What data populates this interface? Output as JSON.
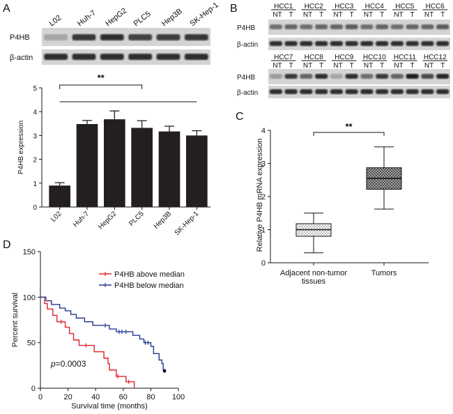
{
  "panels": {
    "A": "A",
    "B": "B",
    "C": "C",
    "D": "D"
  },
  "colors": {
    "bar": "#231f20",
    "blot_band": "#1c1c1c",
    "blot_bg": "#d4d4d4",
    "above_median": "#e0232c",
    "below_median": "#27378f"
  },
  "panel_a_blot": {
    "lanes": [
      "L02",
      "Huh-7",
      "HepG2",
      "PLC5",
      "Hep3B",
      "SK-Hep-1"
    ],
    "rows": [
      "P4HB",
      "β-actin"
    ],
    "p4hb_intensity": [
      0.25,
      0.85,
      0.9,
      0.8,
      0.82,
      0.85
    ]
  },
  "panel_b_blot": {
    "top_groups": [
      "HCC1",
      "HCC2",
      "HCC3",
      "HCC4",
      "HCC5",
      "HCC6"
    ],
    "bottom_groups": [
      "HCC7",
      "HCC8",
      "HCC9",
      "HCC10",
      "HCC11",
      "HCC12"
    ],
    "sub_labels": [
      "NT",
      "T"
    ],
    "rows": [
      "P4HB",
      "β-actin"
    ]
  },
  "chart_data": [
    {
      "id": "A-bar",
      "type": "bar",
      "title": "",
      "xlabel": "",
      "ylabel": "P4HB expression",
      "ylim": [
        0,
        5
      ],
      "yticks": [
        "0",
        "1",
        "2",
        "3",
        "4",
        "5"
      ],
      "categories": [
        "L02",
        "Huh-7",
        "HepG2",
        "PLC5",
        "Hep3B",
        "SK-Hep-1"
      ],
      "values": [
        0.9,
        3.48,
        3.68,
        3.32,
        3.17,
        3.0
      ],
      "errors": [
        0.12,
        0.15,
        0.35,
        0.3,
        0.22,
        0.2
      ],
      "significance": "**"
    },
    {
      "id": "C-box",
      "type": "box",
      "ylabel": "Relative P4HB mRNA expression",
      "ylim": [
        0,
        4
      ],
      "yticks": [
        "0",
        "1",
        "2",
        "3",
        "4"
      ],
      "categories": [
        "Adjacent non-tumor\ntissues",
        "Tumors"
      ],
      "boxes": [
        {
          "min": 0.3,
          "q1": 0.8,
          "median": 1.0,
          "q3": 1.18,
          "max": 1.5
        },
        {
          "min": 1.62,
          "q1": 2.22,
          "median": 2.55,
          "q3": 2.87,
          "max": 3.5
        }
      ],
      "significance": "**"
    },
    {
      "id": "D-km",
      "type": "line",
      "xlabel": "Survival time (months)",
      "ylabel": "Percent survival",
      "xlim": [
        0,
        100
      ],
      "ylim": [
        0,
        150
      ],
      "xticks": [
        "0",
        "20",
        "40",
        "60",
        "80",
        "100"
      ],
      "yticks": [
        "0",
        "50",
        "100",
        "150"
      ],
      "annotation_prefix": "p",
      "annotation_value": "=0.0003",
      "series": [
        {
          "name": "P4HB above median",
          "color_key": "above_median",
          "steps": [
            [
              0,
              100
            ],
            [
              3,
              93
            ],
            [
              5,
              87
            ],
            [
              9,
              80
            ],
            [
              12,
              73
            ],
            [
              16,
              73
            ],
            [
              18,
              67
            ],
            [
              21,
              60
            ],
            [
              24,
              53
            ],
            [
              28,
              47
            ],
            [
              32,
              47
            ],
            [
              35,
              47
            ],
            [
              39,
              40
            ],
            [
              42,
              40
            ],
            [
              46,
              33
            ],
            [
              49,
              27
            ],
            [
              50,
              20
            ],
            [
              53,
              20
            ],
            [
              55,
              13
            ],
            [
              58,
              13
            ],
            [
              62,
              7
            ],
            [
              66,
              7
            ],
            [
              68,
              0
            ]
          ],
          "censored": [
            [
              15,
              73
            ],
            [
              33,
              47
            ],
            [
              56,
              13
            ],
            [
              64,
              7
            ]
          ]
        },
        {
          "name": "P4HB below median",
          "color_key": "below_median",
          "steps": [
            [
              0,
              100
            ],
            [
              4,
              96
            ],
            [
              8,
              92
            ],
            [
              14,
              88
            ],
            [
              18,
              85
            ],
            [
              22,
              81
            ],
            [
              26,
              77
            ],
            [
              32,
              73
            ],
            [
              38,
              69
            ],
            [
              45,
              69
            ],
            [
              50,
              65
            ],
            [
              55,
              62
            ],
            [
              61,
              62
            ],
            [
              67,
              58
            ],
            [
              72,
              54
            ],
            [
              75,
              50
            ],
            [
              80,
              46
            ],
            [
              82,
              38
            ],
            [
              86,
              31
            ],
            [
              88,
              27
            ],
            [
              89,
              19
            ],
            [
              90,
              19
            ]
          ],
          "censored": [
            [
              47,
              69
            ],
            [
              57,
              62
            ],
            [
              59,
              62
            ],
            [
              62,
              62
            ],
            [
              76,
              50
            ],
            [
              78,
              50
            ],
            [
              90,
              19
            ]
          ]
        }
      ]
    }
  ]
}
